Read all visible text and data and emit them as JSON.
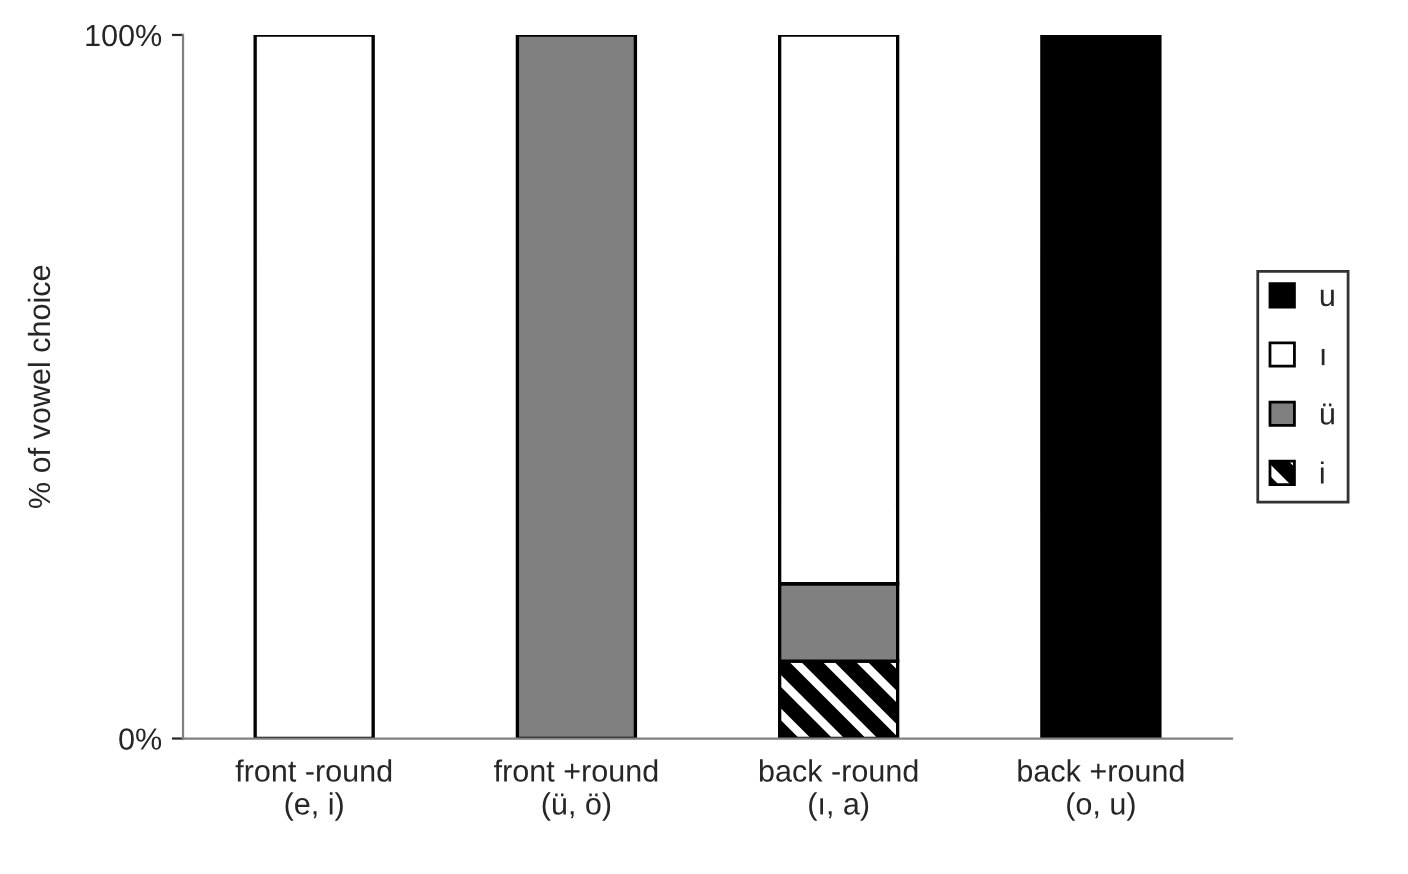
{
  "chart_data": {
    "type": "bar",
    "stacked": true,
    "ylabel": "% of vowel choice",
    "categories": [
      "front -round\n(e, i)",
      "front +round\n(ü, ö)",
      "back -round\n(ı, a)",
      "back +round\n(o, u)"
    ],
    "series": [
      {
        "name": "i",
        "color": "#000000",
        "values": [
          0,
          0,
          11,
          0
        ]
      },
      {
        "name": "ü",
        "color": "#808080",
        "values": [
          0,
          100,
          11,
          0
        ]
      },
      {
        "name": "ı",
        "color": "#ffffff",
        "values": [
          100,
          0,
          78,
          0
        ]
      },
      {
        "name": "u",
        "color": "#000000",
        "values": [
          0,
          0,
          0,
          100
        ]
      }
    ],
    "ylim": [
      0,
      100
    ],
    "yticks": [
      {
        "value": 0,
        "label": "0%"
      },
      {
        "value": 100,
        "label": "100%"
      }
    ],
    "grid": false,
    "legend": "right"
  }
}
